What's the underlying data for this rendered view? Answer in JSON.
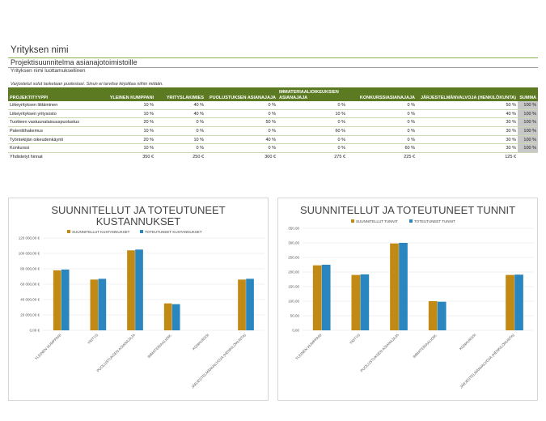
{
  "header": {
    "company": "Yrityksen nimi",
    "subtitle": "Projektisuunnitelma asianajotoimistoille",
    "confidential": "Yrityksen nimi luottamuksellinen",
    "note": "Varjostetut solut lasketaan puolestasi. Sinun ei tarvitse kirjoittaa niihin mitään."
  },
  "table": {
    "columns": [
      "PROJEKTITYYPPI",
      "YLEINEN KUMPPANI",
      "YRITYSLAKIMIES",
      "PUOLUSTUKSEN ASIANAJAJA",
      "IMMATERIAALIOIKEUKSIEN ASIANAJAJA",
      "KONKURSSIASIANAJAJA",
      "JÄRJESTELMÄNVALVOJA (HENKILÖKUNTA)",
      "SUMMA"
    ],
    "rows": [
      [
        "Liikeyrityksen liittäminen",
        "10 %",
        "40 %",
        "0 %",
        "0 %",
        "0 %",
        "50 %",
        "100 %"
      ],
      [
        "Liikeyrityksen yritysosto",
        "10 %",
        "40 %",
        "0 %",
        "10 %",
        "0 %",
        "40 %",
        "100 %"
      ],
      [
        "Tuotteen vastuunalaisuuspuolustus",
        "20 %",
        "0 %",
        "50 %",
        "0 %",
        "0 %",
        "30 %",
        "100 %"
      ],
      [
        "Patenttihakemus",
        "10 %",
        "0 %",
        "0 %",
        "60 %",
        "0 %",
        "30 %",
        "100 %"
      ],
      [
        "Työntekijän oikeudenkäynti",
        "20 %",
        "10 %",
        "40 %",
        "0 %",
        "0 %",
        "30 %",
        "100 %"
      ],
      [
        "Konkurssi",
        "10 %",
        "0 %",
        "0 %",
        "0 %",
        "60 %",
        "30 %",
        "100 %"
      ]
    ],
    "total": [
      "Yhdistetyt hinnat",
      "350 €",
      "250 €",
      "300 €",
      "275 €",
      "225 €",
      "125 €",
      ""
    ]
  },
  "colors": {
    "planned": "#c08a14",
    "actual": "#2a86bf",
    "header_green": "#5b7a22"
  },
  "chart_data": [
    {
      "type": "bar",
      "title": "SUUNNITELLUT JA TOTEUTUNEET KUSTANNUKSET",
      "title_lines": [
        "SUUNNITELLUT JA TOTEUTUNEET",
        "KUSTANNUKSET"
      ],
      "categories": [
        "YLEINEN KUMPPANI",
        "YRITYS",
        "PUOLUSTUKSEN ASIANAJAJA",
        "IMMATERIAALIOIK.",
        "KONKURSSI",
        "JÄRJESTELMÄNVALVOJA (HENKILÖKUNTA)"
      ],
      "series": [
        {
          "name": "SUUNNITELLUT KUSTANNUKSET",
          "values": [
            78000,
            66000,
            104000,
            35000,
            0,
            66000
          ]
        },
        {
          "name": "TOTEUTUNEET KUSTANNUKSET",
          "values": [
            79000,
            67000,
            105000,
            34000,
            0,
            67000
          ]
        }
      ],
      "ylim": [
        0,
        120000
      ],
      "ticks": [
        0,
        20000,
        40000,
        60000,
        80000,
        100000,
        120000
      ],
      "tick_labels": [
        "0,00 €",
        "20 000,00 €",
        "40 000,00 €",
        "60 000,00 €",
        "80 000,00 €",
        "100 000,00 €",
        "120 000,00 €"
      ],
      "grid": true,
      "legend": "top"
    },
    {
      "type": "bar",
      "title": "SUUNNITELLUT JA TOTEUTUNEET TUNNIT",
      "title_lines": [
        "SUUNNITELLUT JA TOTEUTUNEET TUNNIT"
      ],
      "categories": [
        "YLEINEN KUMPPANI",
        "YRITYS",
        "PUOLUSTUKSEN ASIANAJAJA",
        "IMMATERIAALIOIK.",
        "KONKURSSI",
        "JÄRJESTELMÄNVALVOJA (HENKILÖKUNTA)"
      ],
      "series": [
        {
          "name": "SUUNNITELLUT TUNNIT",
          "values": [
            223,
            190,
            298,
            100,
            0,
            190
          ]
        },
        {
          "name": "TOTEUTUNEET TUNNIT",
          "values": [
            225,
            192,
            300,
            98,
            0,
            191
          ]
        }
      ],
      "ylim": [
        0,
        350
      ],
      "ticks": [
        0,
        50,
        100,
        150,
        200,
        250,
        300,
        350
      ],
      "tick_labels": [
        "0,00",
        "50,00",
        "100,00",
        "150,00",
        "200,00",
        "250,00",
        "300,00",
        "350,00"
      ],
      "grid": true,
      "legend": "top"
    }
  ]
}
